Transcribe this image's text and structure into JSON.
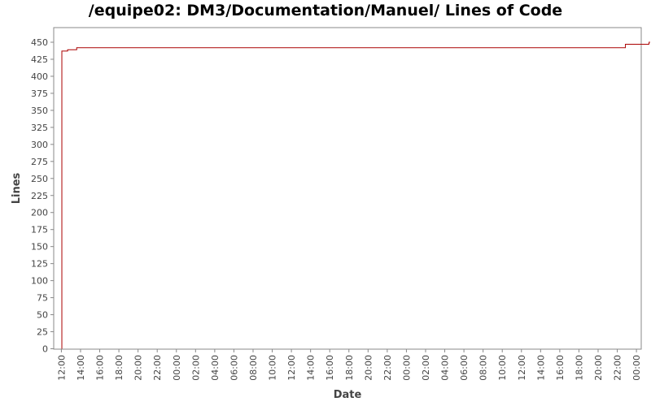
{
  "chart_data": {
    "type": "line",
    "title": "/equipe02: DM3/Documentation/Manuel/ Lines of Code",
    "xlabel": "Date",
    "ylabel": "Lines",
    "ylim": [
      0,
      462
    ],
    "y_ticks": [
      0,
      25,
      50,
      75,
      100,
      125,
      150,
      175,
      200,
      225,
      250,
      275,
      300,
      325,
      350,
      375,
      400,
      425,
      450
    ],
    "x_range_hours": [
      11.2,
      72.5
    ],
    "x_ticks": [
      {
        "h": 12,
        "label": "12:00"
      },
      {
        "h": 14,
        "label": "14:00"
      },
      {
        "h": 16,
        "label": "16:00"
      },
      {
        "h": 18,
        "label": "18:00"
      },
      {
        "h": 20,
        "label": "20:00"
      },
      {
        "h": 22,
        "label": "22:00"
      },
      {
        "h": 24,
        "label": "00:00"
      },
      {
        "h": 26,
        "label": "02:00"
      },
      {
        "h": 28,
        "label": "04:00"
      },
      {
        "h": 30,
        "label": "06:00"
      },
      {
        "h": 32,
        "label": "08:00"
      },
      {
        "h": 34,
        "label": "10:00"
      },
      {
        "h": 36,
        "label": "12:00"
      },
      {
        "h": 38,
        "label": "14:00"
      },
      {
        "h": 40,
        "label": "16:00"
      },
      {
        "h": 42,
        "label": "18:00"
      },
      {
        "h": 44,
        "label": "20:00"
      },
      {
        "h": 46,
        "label": "22:00"
      },
      {
        "h": 48,
        "label": "00:00"
      },
      {
        "h": 50,
        "label": "02:00"
      },
      {
        "h": 52,
        "label": "04:00"
      },
      {
        "h": 54,
        "label": "06:00"
      },
      {
        "h": 56,
        "label": "08:00"
      },
      {
        "h": 58,
        "label": "10:00"
      },
      {
        "h": 60,
        "label": "12:00"
      },
      {
        "h": 62,
        "label": "14:00"
      },
      {
        "h": 64,
        "label": "16:00"
      },
      {
        "h": 66,
        "label": "18:00"
      },
      {
        "h": 68,
        "label": "20:00"
      },
      {
        "h": 70,
        "label": "22:00"
      },
      {
        "h": 72,
        "label": "00:00"
      }
    ],
    "series": [
      {
        "color": "#aa0000",
        "step": true,
        "points": [
          {
            "h": 12.05,
            "y": 0
          },
          {
            "h": 12.05,
            "y": 437
          },
          {
            "h": 12.65,
            "y": 439
          },
          {
            "h": 13.6,
            "y": 442
          },
          {
            "h": 70.85,
            "y": 447
          },
          {
            "h": 73.3,
            "y": 449
          },
          {
            "h": 73.35,
            "y": 451
          }
        ]
      }
    ],
    "grid": false
  }
}
